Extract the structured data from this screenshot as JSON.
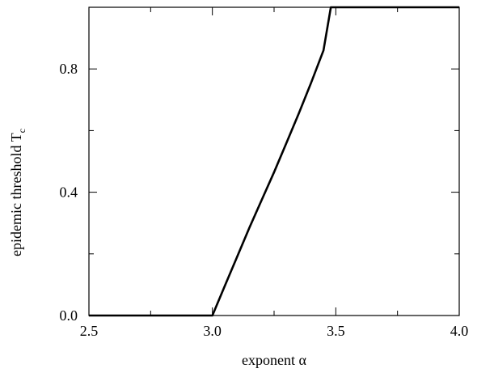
{
  "chart_data": {
    "type": "line",
    "xlabel": "exponent α",
    "ylabel": "epidemic threshold T",
    "ylabel_subscript": "c",
    "xlim": [
      2.5,
      4.0
    ],
    "ylim": [
      0.0,
      1.0
    ],
    "xticks": [
      {
        "value": 2.5,
        "label": "2.5"
      },
      {
        "value": 3.0,
        "label": "3.0"
      },
      {
        "value": 3.5,
        "label": "3.5"
      },
      {
        "value": 4.0,
        "label": "4.0"
      }
    ],
    "xminor": [
      2.75,
      3.25,
      3.75
    ],
    "yticks": [
      {
        "value": 0.0,
        "label": "0.0"
      },
      {
        "value": 0.4,
        "label": "0.4"
      },
      {
        "value": 0.8,
        "label": "0.8"
      }
    ],
    "yminor": [
      0.2,
      0.6
    ],
    "grid": false,
    "legend": "none",
    "line_color": "#000000",
    "series": [
      {
        "x": [
          2.5,
          3.0,
          3.05,
          3.1,
          3.15,
          3.2,
          3.25,
          3.3,
          3.35,
          3.4,
          3.45,
          3.48,
          4.0
        ],
        "y": [
          0.0,
          0.0,
          0.095,
          0.19,
          0.285,
          0.375,
          0.465,
          0.56,
          0.655,
          0.755,
          0.86,
          1.0,
          1.0
        ]
      }
    ]
  }
}
